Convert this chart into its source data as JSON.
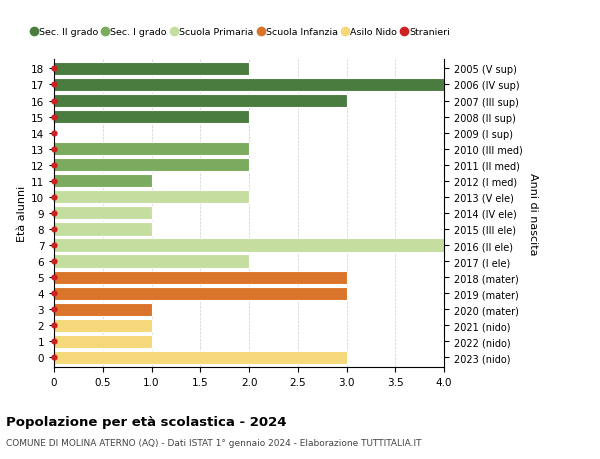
{
  "ages": [
    18,
    17,
    16,
    15,
    14,
    13,
    12,
    11,
    10,
    9,
    8,
    7,
    6,
    5,
    4,
    3,
    2,
    1,
    0
  ],
  "years": [
    "2005 (V sup)",
    "2006 (IV sup)",
    "2007 (III sup)",
    "2008 (II sup)",
    "2009 (I sup)",
    "2010 (III med)",
    "2011 (II med)",
    "2012 (I med)",
    "2013 (V ele)",
    "2014 (IV ele)",
    "2015 (III ele)",
    "2016 (II ele)",
    "2017 (I ele)",
    "2018 (mater)",
    "2019 (mater)",
    "2020 (mater)",
    "2021 (nido)",
    "2022 (nido)",
    "2023 (nido)"
  ],
  "values": [
    2,
    4,
    3,
    2,
    0,
    2,
    2,
    1,
    2,
    1,
    1,
    4,
    2,
    3,
    3,
    1,
    1,
    1,
    3
  ],
  "categories": [
    "Sec. II grado",
    "Sec. II grado",
    "Sec. II grado",
    "Sec. II grado",
    "Sec. II grado",
    "Sec. I grado",
    "Sec. I grado",
    "Sec. I grado",
    "Scuola Primaria",
    "Scuola Primaria",
    "Scuola Primaria",
    "Scuola Primaria",
    "Scuola Primaria",
    "Scuola Infanzia",
    "Scuola Infanzia",
    "Scuola Infanzia",
    "Asilo Nido",
    "Asilo Nido",
    "Asilo Nido"
  ],
  "category_colors": {
    "Sec. II grado": "#4a7c3f",
    "Sec. I grado": "#7aab5e",
    "Scuola Primaria": "#c5dea0",
    "Scuola Infanzia": "#d9742a",
    "Asilo Nido": "#f5d87a"
  },
  "stranieri_color": "#cc2222",
  "ylabel_left": "Età alunni",
  "ylabel_right": "Anni di nascita",
  "title": "Popolazione per età scolastica - 2024",
  "subtitle": "COMUNE DI MOLINA ATERNO (AQ) - Dati ISTAT 1° gennaio 2024 - Elaborazione TUTTITALIA.IT",
  "xlim": [
    0,
    4.0
  ],
  "background_color": "#ffffff",
  "grid_color": "#cccccc",
  "bar_height": 0.82
}
